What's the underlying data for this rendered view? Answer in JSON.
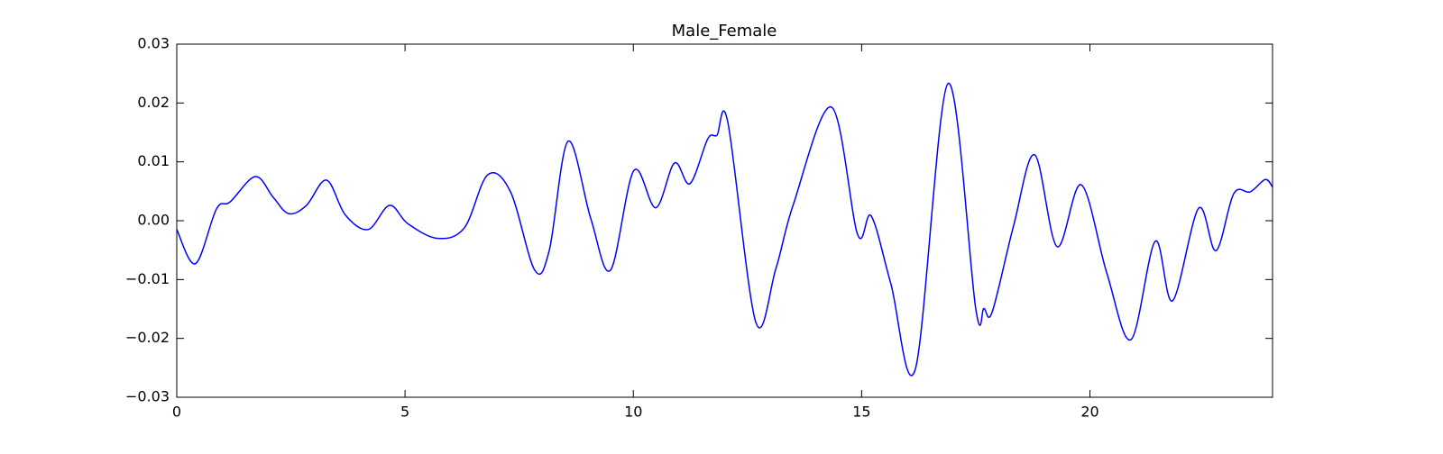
{
  "chart_data": {
    "type": "line",
    "title": "Male_Female",
    "x": [
      0,
      0.41,
      0.87,
      1.17,
      1.72,
      2.11,
      2.45,
      2.84,
      3.28,
      3.69,
      4.19,
      4.66,
      5.06,
      5.71,
      6.3,
      6.81,
      7.31,
      7.84,
      8.16,
      8.57,
      9.07,
      9.5,
      10.01,
      10.49,
      10.9,
      11.24,
      11.63,
      11.83,
      12.07,
      12.68,
      13.12,
      13.51,
      14.34,
      14.91,
      15.21,
      15.64,
      16.18,
      16.89,
      17.5,
      17.68,
      17.86,
      18.33,
      18.79,
      19.28,
      19.81,
      20.37,
      20.9,
      21.43,
      21.81,
      22.38,
      22.76,
      23.15,
      23.51,
      23.84,
      24
    ],
    "series": [
      {
        "color": "#0000ff",
        "values": [
          -0.0015,
          -0.0073,
          0.002,
          0.0032,
          0.0075,
          0.004,
          0.0012,
          0.0026,
          0.0069,
          0.001,
          -0.0015,
          0.0026,
          -0.0005,
          -0.003,
          -0.0012,
          0.0078,
          0.0049,
          -0.0084,
          -0.005,
          0.0135,
          0.0003,
          -0.0084,
          0.0085,
          0.0022,
          0.0098,
          0.0063,
          0.0139,
          0.0145,
          0.0167,
          -0.0172,
          -0.0082,
          0.0029,
          0.0193,
          -0.0023,
          0.0008,
          -0.0107,
          -0.0251,
          0.0233,
          -0.015,
          -0.0149,
          -0.0155,
          -0.0008,
          0.0112,
          -0.0044,
          0.0061,
          -0.0089,
          -0.0202,
          -0.0035,
          -0.0136,
          0.0021,
          -0.0051,
          0.0046,
          0.0049,
          0.007,
          0.0057
        ]
      }
    ],
    "xlim": [
      0,
      24
    ],
    "xticks": [
      0,
      5,
      10,
      15,
      20
    ],
    "ylim": [
      -0.03,
      0.03
    ],
    "yticks": [
      {
        "value": -0.03,
        "label": "−0.03"
      },
      {
        "value": -0.02,
        "label": "−0.02"
      },
      {
        "value": -0.01,
        "label": "−0.01"
      },
      {
        "value": 0,
        "label": "0.00"
      },
      0.01,
      0.02,
      0.03
    ]
  }
}
